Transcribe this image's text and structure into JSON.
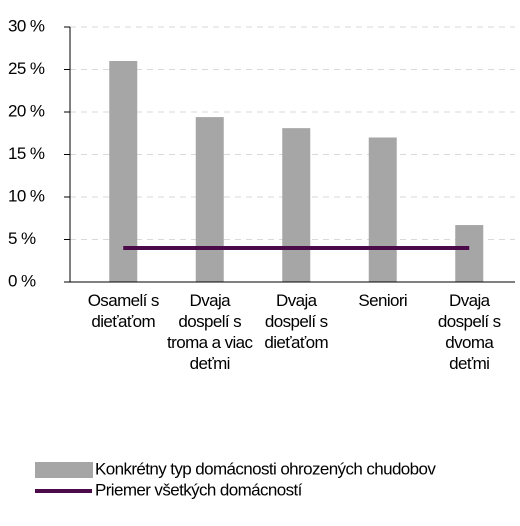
{
  "chart_data": {
    "type": "bar",
    "categories": [
      "Osamelí s dieťaťom",
      "Dvaja dospelí s troma a viac deťmi",
      "Dvaja dospelí s dieťaťom",
      "Seniori",
      "Dvaja dospelí s dvoma deťmi"
    ],
    "series": [
      {
        "name": "Konkrétny typ domácnosti ohrozených chudobov",
        "type": "bar",
        "color": "#a6a6a6",
        "values": [
          26,
          19.4,
          18.1,
          17,
          6.7
        ]
      },
      {
        "name": "Priemer všetkých domácností",
        "type": "line",
        "color": "#4b0a4a",
        "values": [
          4,
          4,
          4,
          4,
          4
        ]
      }
    ],
    "ylim": [
      0,
      30
    ],
    "yticks": [
      {
        "value": 0,
        "label": "0 %"
      },
      {
        "value": 5,
        "label": "5 %"
      },
      {
        "value": 10,
        "label": "10 %"
      },
      {
        "value": 15,
        "label": "15 %"
      },
      {
        "value": 20,
        "label": "20 %"
      },
      {
        "value": 25,
        "label": "25 %"
      },
      {
        "value": 30,
        "label": "30 %"
      }
    ],
    "grid": true
  }
}
